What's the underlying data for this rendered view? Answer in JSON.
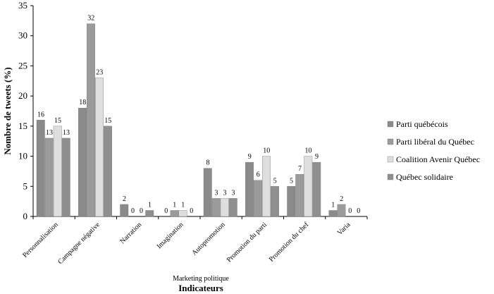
{
  "chart_data": {
    "type": "bar",
    "categories": [
      "Personnalisation",
      "Campagne négative",
      "Narration",
      "Imagination",
      "Autopromotion",
      "Promotion du parti",
      "Promotion du chef",
      "Varia"
    ],
    "series": [
      {
        "name": "Parti québécois",
        "values": [
          16,
          18,
          2,
          0,
          8,
          9,
          5,
          1
        ],
        "color": "#8a8a8a"
      },
      {
        "name": "Parti libéral du Québec",
        "values": [
          13,
          32,
          0,
          1,
          3,
          6,
          7,
          2
        ],
        "color": "#9b9b9b"
      },
      {
        "name": "Coalition Avenir Québec",
        "values": [
          15,
          23,
          0,
          1,
          3,
          10,
          10,
          0
        ],
        "color": "#dedede"
      },
      {
        "name": "Québec solidaire",
        "values": [
          13,
          15,
          1,
          0,
          3,
          5,
          9,
          0
        ],
        "color": "#8f8f8f"
      }
    ],
    "ylabel": "Nombre de tweets (%)",
    "xlabel": "Indicateurs",
    "xsublabel": "Marketing politique",
    "ylim": [
      0,
      35
    ],
    "yticks": [
      0,
      5,
      10,
      15,
      20,
      25,
      30,
      35
    ],
    "grid": false,
    "legend_position": "right"
  }
}
